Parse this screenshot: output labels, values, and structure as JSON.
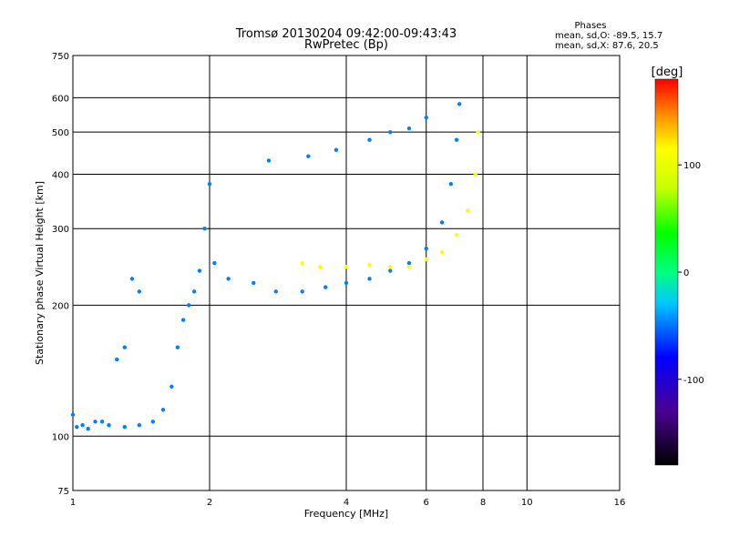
{
  "chart_data": {
    "type": "scatter",
    "title": "Tromsø 20130204 09:42:00-09:43:43",
    "subtitle": "RwPretec (Bp)",
    "xlabel": "Frequency [MHz]",
    "ylabel": "Stationary phase Virtual Height [km]",
    "x_scale": "log",
    "y_scale": "log",
    "xlim": [
      1,
      16
    ],
    "ylim": [
      75,
      750
    ],
    "x_ticks": [
      1,
      2,
      4,
      6,
      8,
      10,
      16
    ],
    "y_ticks": [
      75,
      100,
      200,
      300,
      400,
      500,
      600,
      750
    ],
    "grid": true,
    "stats": {
      "heading": "Phases",
      "line_o": "mean, sd,O: -89.5, 15.7",
      "line_x": "mean, sd,X: 87.6, 20.5"
    },
    "colorbar": {
      "label": "[deg]",
      "range": [
        -180,
        180
      ],
      "ticks": [
        100,
        0,
        -100
      ]
    },
    "series": [
      {
        "points": [
          {
            "f": 1.0,
            "h": 112,
            "phase": -100
          },
          {
            "f": 1.02,
            "h": 105,
            "phase": -100
          },
          {
            "f": 1.05,
            "h": 106,
            "phase": -100
          },
          {
            "f": 1.08,
            "h": 104,
            "phase": -100
          },
          {
            "f": 1.12,
            "h": 108,
            "phase": -100
          },
          {
            "f": 1.16,
            "h": 108,
            "phase": -100
          },
          {
            "f": 1.2,
            "h": 106,
            "phase": -100
          },
          {
            "f": 1.3,
            "h": 105,
            "phase": -100
          },
          {
            "f": 1.4,
            "h": 106,
            "phase": -100
          },
          {
            "f": 1.5,
            "h": 108,
            "phase": -100
          },
          {
            "f": 1.58,
            "h": 115,
            "phase": -100
          },
          {
            "f": 1.65,
            "h": 130,
            "phase": -100
          },
          {
            "f": 1.7,
            "h": 160,
            "phase": -100
          },
          {
            "f": 1.75,
            "h": 185,
            "phase": -100
          },
          {
            "f": 1.8,
            "h": 200,
            "phase": -100
          },
          {
            "f": 1.85,
            "h": 215,
            "phase": -100
          },
          {
            "f": 1.9,
            "h": 240,
            "phase": -100
          },
          {
            "f": 1.95,
            "h": 300,
            "phase": -100
          },
          {
            "f": 2.0,
            "h": 380,
            "phase": -100
          },
          {
            "f": 2.05,
            "h": 250,
            "phase": -100
          },
          {
            "f": 2.2,
            "h": 230,
            "phase": -100
          },
          {
            "f": 2.5,
            "h": 225,
            "phase": -100
          },
          {
            "f": 2.8,
            "h": 215,
            "phase": -100
          },
          {
            "f": 3.2,
            "h": 215,
            "phase": -100
          },
          {
            "f": 3.6,
            "h": 220,
            "phase": -100
          },
          {
            "f": 4.0,
            "h": 225,
            "phase": -100
          },
          {
            "f": 4.5,
            "h": 230,
            "phase": -100
          },
          {
            "f": 5.0,
            "h": 240,
            "phase": -100
          },
          {
            "f": 5.5,
            "h": 250,
            "phase": -100
          },
          {
            "f": 6.0,
            "h": 270,
            "phase": -100
          },
          {
            "f": 6.5,
            "h": 310,
            "phase": -100
          },
          {
            "f": 6.8,
            "h": 380,
            "phase": -100
          },
          {
            "f": 7.0,
            "h": 480,
            "phase": -100
          },
          {
            "f": 7.1,
            "h": 580,
            "phase": -100
          },
          {
            "f": 2.7,
            "h": 430,
            "phase": -100
          },
          {
            "f": 3.3,
            "h": 440,
            "phase": -100
          },
          {
            "f": 3.8,
            "h": 455,
            "phase": -100
          },
          {
            "f": 4.5,
            "h": 480,
            "phase": -100
          },
          {
            "f": 5.0,
            "h": 500,
            "phase": -100
          },
          {
            "f": 5.5,
            "h": 510,
            "phase": -100
          },
          {
            "f": 6.0,
            "h": 540,
            "phase": -100
          },
          {
            "f": 1.35,
            "h": 230,
            "phase": -100
          },
          {
            "f": 1.4,
            "h": 215,
            "phase": -100
          },
          {
            "f": 1.25,
            "h": 150,
            "phase": -100
          },
          {
            "f": 1.3,
            "h": 160,
            "phase": -100
          }
        ]
      },
      {
        "points": [
          {
            "f": 3.2,
            "h": 250,
            "phase": 100
          },
          {
            "f": 3.5,
            "h": 245,
            "phase": 100
          },
          {
            "f": 4.0,
            "h": 245,
            "phase": 100
          },
          {
            "f": 4.5,
            "h": 248,
            "phase": 100
          },
          {
            "f": 5.0,
            "h": 245,
            "phase": 100
          },
          {
            "f": 5.5,
            "h": 245,
            "phase": 100
          },
          {
            "f": 6.0,
            "h": 255,
            "phase": 100
          },
          {
            "f": 6.5,
            "h": 265,
            "phase": 100
          },
          {
            "f": 7.0,
            "h": 290,
            "phase": 100
          },
          {
            "f": 7.4,
            "h": 330,
            "phase": 100
          },
          {
            "f": 7.7,
            "h": 400,
            "phase": 100
          },
          {
            "f": 7.8,
            "h": 500,
            "phase": 100
          }
        ]
      }
    ]
  }
}
